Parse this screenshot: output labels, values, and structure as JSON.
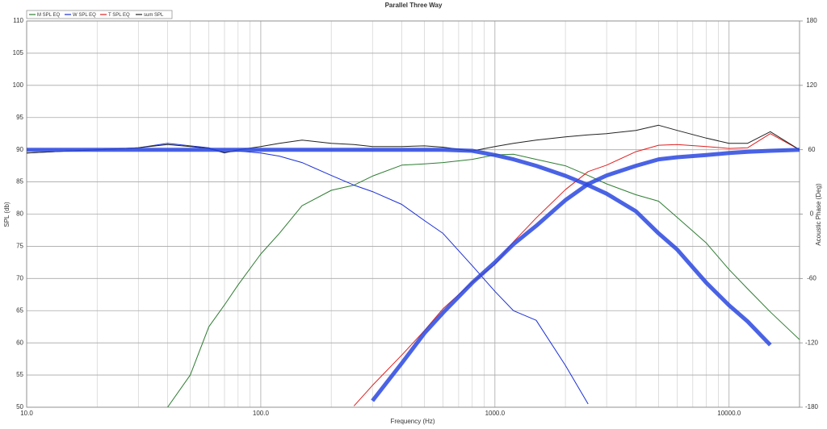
{
  "chart_data": {
    "type": "line",
    "title": "Parallel Three Way",
    "x_label": "Frequency (Hz)",
    "y_label": "SPL (db)",
    "y2_label": "Acoustic Phase (Deg)",
    "x_scale": "log",
    "grid": true,
    "legend": "top-left",
    "xlim": [
      10,
      20000
    ],
    "xticks": [
      {
        "value": 10,
        "label": "10.0"
      },
      {
        "value": 100,
        "label": "100.0"
      },
      {
        "value": 1000,
        "label": "1000.0"
      },
      {
        "value": 10000,
        "label": "10000.0"
      }
    ],
    "xgrid_minor": [
      20,
      30,
      40,
      50,
      60,
      70,
      80,
      90,
      200,
      300,
      400,
      500,
      600,
      700,
      800,
      900,
      2000,
      3000,
      4000,
      5000,
      6000,
      7000,
      8000,
      9000,
      20000
    ],
    "ylim": [
      50,
      110
    ],
    "yticks": [
      50,
      55,
      60,
      65,
      70,
      75,
      80,
      85,
      90,
      95,
      100,
      105,
      110
    ],
    "y2lim": [
      -180,
      180
    ],
    "y2ticks": [
      -180,
      -120,
      -60,
      0,
      60,
      120,
      180
    ],
    "x": [
      10,
      15,
      20,
      30,
      40,
      50,
      60,
      70,
      80,
      100,
      120,
      150,
      200,
      250,
      300,
      400,
      500,
      600,
      800,
      1000,
      1200,
      1500,
      2000,
      2500,
      3000,
      4000,
      5000,
      6000,
      8000,
      10000,
      12000,
      15000,
      20000
    ],
    "series": [
      {
        "name": "M SPL EQ",
        "color": "#2e7d32",
        "width": 1,
        "values": [
          null,
          null,
          null,
          null,
          50,
          55,
          62.5,
          65.9,
          69,
          73.8,
          77,
          81.3,
          83.7,
          84.5,
          85.9,
          87.6,
          87.8,
          88,
          88.5,
          89.2,
          89.3,
          88.5,
          87.5,
          86,
          84.7,
          83,
          82,
          79.5,
          75.5,
          71.4,
          68.4,
          64.8,
          60.5
        ]
      },
      {
        "name": "W SPL EQ",
        "color": "#1a2fd6",
        "width": 1,
        "values": [
          89.5,
          89.8,
          90,
          90.3,
          91,
          90.6,
          90.3,
          89.6,
          89.8,
          89.5,
          89,
          88,
          86,
          84.5,
          83.5,
          81.5,
          79,
          77,
          72,
          68,
          65,
          63.5,
          56.5,
          50.5,
          null,
          null,
          null,
          null,
          null,
          null,
          null,
          null,
          null
        ]
      },
      {
        "name": "T SPL EQ",
        "color": "#e02020",
        "width": 1,
        "values": [
          null,
          null,
          null,
          null,
          null,
          null,
          null,
          null,
          null,
          null,
          null,
          null,
          null,
          50.2,
          53.4,
          58.1,
          61.9,
          65.3,
          69.4,
          72.2,
          75.7,
          79.4,
          83.8,
          86.6,
          87.6,
          89.7,
          90.7,
          90.8,
          90.5,
          90.2,
          90.3,
          92.5,
          90
        ]
      },
      {
        "name": "sum SPL",
        "color": "#222222",
        "width": 1,
        "values": [
          89.5,
          89.8,
          90,
          90.3,
          90.8,
          90.5,
          90.2,
          89.5,
          90,
          90.5,
          91,
          91.5,
          91,
          90.8,
          90.5,
          90.5,
          90.6,
          90.4,
          89.8,
          90.5,
          91,
          91.5,
          92,
          92.3,
          92.5,
          93,
          93.8,
          93,
          91.8,
          91,
          91,
          92.8,
          90
        ]
      },
      {
        "color": "#2a48e0",
        "width": 5,
        "axis": "y2",
        "values": [
          60,
          60,
          60,
          60,
          60,
          60,
          60,
          60,
          60,
          60,
          60,
          60,
          60,
          60,
          60,
          60,
          60,
          60,
          59,
          55,
          51,
          45,
          35.7,
          27,
          19,
          2.6,
          -18,
          -33,
          -64,
          -85,
          -100,
          -122,
          null
        ]
      },
      {
        "color": "#2a48e0",
        "width": 5,
        "axis": "y2",
        "values": [
          null,
          null,
          null,
          null,
          null,
          null,
          null,
          null,
          null,
          null,
          null,
          null,
          null,
          null,
          -174,
          -139,
          -111,
          -92,
          -64,
          -45,
          -28,
          -11,
          13,
          28,
          36,
          45,
          51,
          53,
          55,
          57,
          58,
          59,
          60
        ]
      }
    ]
  }
}
